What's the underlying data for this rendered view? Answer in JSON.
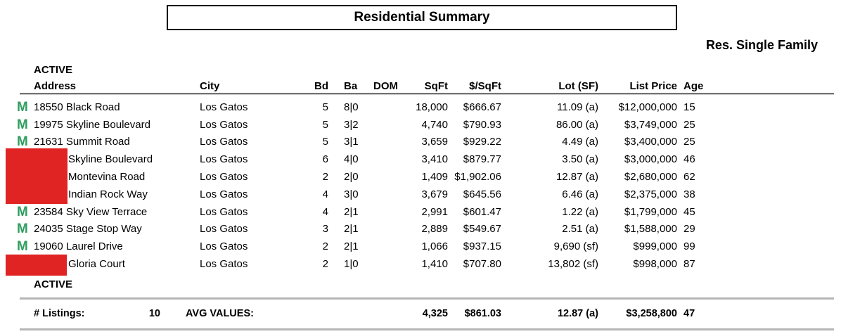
{
  "title": "Residential Summary",
  "subtitle": "Res. Single Family",
  "sections": {
    "top_label": "ACTIVE",
    "bottom_label": "ACTIVE"
  },
  "table": {
    "headers": {
      "address": "Address",
      "city": "City",
      "bd": "Bd",
      "ba": "Ba",
      "dom": "DOM",
      "sqft": "SqFt",
      "price_per_sqft": "$/SqFt",
      "lot": "Lot (SF)",
      "list_price": "List Price",
      "age": "Age"
    },
    "rows": [
      {
        "icon": "M",
        "address": "18550 Black Road",
        "city": "Los Gatos",
        "bd": "5",
        "ba": "8|0",
        "dom": "",
        "sqft": "18,000",
        "price_per_sqft": "$666.67",
        "lot": "11.09 (a)",
        "list_price": "$12,000,000",
        "age": "15"
      },
      {
        "icon": "M",
        "address": "19975 Skyline Boulevard",
        "city": "Los Gatos",
        "bd": "5",
        "ba": "3|2",
        "dom": "",
        "sqft": "4,740",
        "price_per_sqft": "$790.93",
        "lot": "86.00 (a)",
        "list_price": "$3,749,000",
        "age": "25"
      },
      {
        "icon": "M",
        "address": "21631 Summit Road",
        "city": "Los Gatos",
        "bd": "5",
        "ba": "3|1",
        "dom": "",
        "sqft": "3,659",
        "price_per_sqft": "$929.22",
        "lot": "4.49 (a)",
        "list_price": "$3,400,000",
        "age": "25"
      },
      {
        "icon": "",
        "address": "Skyline Boulevard",
        "city": "Los Gatos",
        "bd": "6",
        "ba": "4|0",
        "dom": "",
        "sqft": "3,410",
        "price_per_sqft": "$879.77",
        "lot": "3.50 (a)",
        "list_price": "$3,000,000",
        "age": "46"
      },
      {
        "icon": "",
        "address": "Montevina Road",
        "city": "Los Gatos",
        "bd": "2",
        "ba": "2|0",
        "dom": "",
        "sqft": "1,409",
        "price_per_sqft": "$1,902.06",
        "lot": "12.87 (a)",
        "list_price": "$2,680,000",
        "age": "62"
      },
      {
        "icon": "",
        "address": "Indian Rock Way",
        "city": "Los Gatos",
        "bd": "4",
        "ba": "3|0",
        "dom": "",
        "sqft": "3,679",
        "price_per_sqft": "$645.56",
        "lot": "6.46 (a)",
        "list_price": "$2,375,000",
        "age": "38"
      },
      {
        "icon": "M",
        "address": "23584 Sky View Terrace",
        "city": "Los Gatos",
        "bd": "4",
        "ba": "2|1",
        "dom": "",
        "sqft": "2,991",
        "price_per_sqft": "$601.47",
        "lot": "1.22 (a)",
        "list_price": "$1,799,000",
        "age": "45"
      },
      {
        "icon": "M",
        "address": "24035 Stage Stop Way",
        "city": "Los Gatos",
        "bd": "3",
        "ba": "2|1",
        "dom": "",
        "sqft": "2,889",
        "price_per_sqft": "$549.67",
        "lot": "2.51 (a)",
        "list_price": "$1,588,000",
        "age": "29"
      },
      {
        "icon": "M",
        "address": "19060 Laurel Drive",
        "city": "Los Gatos",
        "bd": "2",
        "ba": "2|1",
        "dom": "",
        "sqft": "1,066",
        "price_per_sqft": "$937.15",
        "lot": "9,690 (sf)",
        "list_price": "$999,000",
        "age": "99"
      },
      {
        "icon": "",
        "address": "Gloria Court",
        "city": "Los Gatos",
        "bd": "2",
        "ba": "1|0",
        "dom": "",
        "sqft": "1,410",
        "price_per_sqft": "$707.80",
        "lot": "13,802 (sf)",
        "list_price": "$998,000",
        "age": "87"
      }
    ]
  },
  "summary": {
    "listings_label": "# Listings:",
    "listings_count": "10",
    "avg_label": "AVG VALUES:",
    "sqft": "4,325",
    "price_per_sqft": "$861.03",
    "lot": "12.87 (a)",
    "list_price": "$3,258,800",
    "age": "47"
  },
  "colors": {
    "mls_green": "#2F9E5F",
    "redaction_red": "#DF2423"
  }
}
